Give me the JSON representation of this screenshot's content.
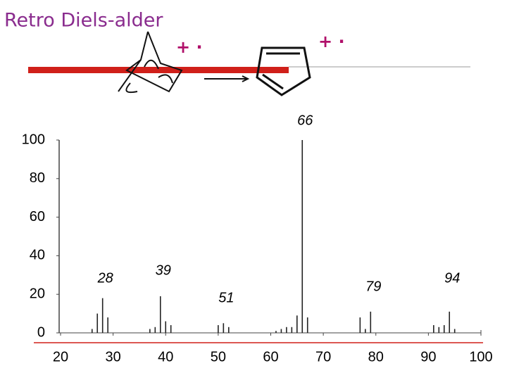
{
  "chart_data": {
    "type": "bar",
    "title": "Retro Diels-alder",
    "radical_cation_marks": [
      "+ ·",
      "+ ·"
    ],
    "x": [
      26,
      27,
      28,
      29,
      37,
      38,
      39,
      40,
      41,
      50,
      51,
      52,
      61,
      62,
      63,
      64,
      65,
      66,
      67,
      77,
      78,
      79,
      91,
      92,
      93,
      94,
      95
    ],
    "values": [
      2,
      10,
      18,
      8,
      2,
      3,
      19,
      6,
      4,
      4,
      5,
      3,
      1,
      2,
      3,
      3,
      9,
      100,
      8,
      8,
      2,
      11,
      4,
      3,
      4,
      11,
      2
    ],
    "color": "#222222",
    "peak_labels": [
      28,
      39,
      51,
      66,
      79,
      94
    ],
    "xlim": [
      20,
      100
    ],
    "xticks": [
      20,
      30,
      40,
      50,
      60,
      70,
      80,
      90,
      100
    ],
    "ylim": [
      0,
      100
    ],
    "yticks": [
      0,
      20,
      40,
      60,
      80,
      100
    ]
  }
}
